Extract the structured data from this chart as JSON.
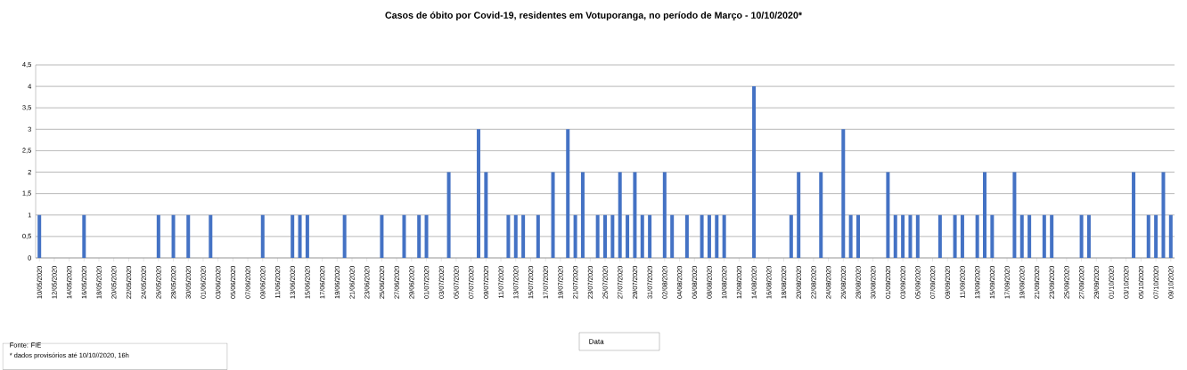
{
  "chart_data": {
    "type": "bar",
    "title": "Casos de óbito por Covid-19, residentes em Votuporanga, no período de Março - 10/10/2020*",
    "categories": [
      "10/05/2020",
      null,
      "12/05/2020",
      null,
      "14/05/2020",
      null,
      "16/05/2020",
      null,
      "18/05/2020",
      null,
      "20/05/2020",
      null,
      "22/05/2020",
      null,
      "24/05/2020",
      null,
      "26/05/2020",
      null,
      "28/05/2020",
      null,
      "30/05/2020",
      null,
      "01/06/2020",
      null,
      "03/06/2020",
      null,
      "05/06/2020",
      null,
      "07/06/2020",
      null,
      "09/06/2020",
      null,
      "11/06/2020",
      null,
      "13/06/2020",
      null,
      "15/06/2020",
      null,
      "17/06/2020",
      null,
      "19/06/2020",
      null,
      "21/06/2020",
      null,
      "23/06/2020",
      null,
      "25/06/2020",
      null,
      "27/06/2020",
      null,
      "29/06/2020",
      null,
      "01/07/2020",
      null,
      "03/07/2020",
      null,
      "05/07/2020",
      null,
      "07/07/2020",
      null,
      "09/07/2020",
      null,
      "11/07/2020",
      null,
      "13/07/2020",
      null,
      "15/07/2020",
      null,
      "17/07/2020",
      null,
      "19/07/2020",
      null,
      "21/07/2020",
      null,
      "23/07/2020",
      null,
      "25/07/2020",
      null,
      "27/07/2020",
      null,
      "29/07/2020",
      null,
      "31/07/2020",
      null,
      "02/08/2020",
      null,
      "04/08/2020",
      null,
      "06/08/2020",
      null,
      "08/08/2020",
      null,
      "10/08/2020",
      null,
      "12/08/2020",
      null,
      "14/08/2020",
      null,
      "16/08/2020",
      null,
      "18/08/2020",
      null,
      "20/08/2020",
      null,
      "22/08/2020",
      null,
      "24/08/2020",
      null,
      "26/08/2020",
      null,
      "28/08/2020",
      null,
      "30/08/2020",
      null,
      "01/09/2020",
      null,
      "03/09/2020",
      null,
      "05/09/2020",
      null,
      "07/09/2020",
      null,
      "09/09/2020",
      null,
      "11/09/2020",
      null,
      "13/09/2020",
      null,
      "15/09/2020",
      null,
      "17/09/2020",
      null,
      "19/09/2020",
      null,
      "21/09/2020",
      null,
      "23/09/2020",
      null,
      "25/09/2020",
      null,
      "27/09/2020",
      null,
      "29/09/2020",
      null,
      "01/10/2020",
      null,
      "03/10/2020",
      null,
      "05/10/2020",
      null,
      "07/10/2020",
      null,
      "09/10/2020"
    ],
    "values": [
      1,
      0,
      0,
      0,
      0,
      0,
      1,
      0,
      0,
      0,
      0,
      0,
      0,
      0,
      0,
      0,
      1,
      0,
      1,
      0,
      1,
      0,
      0,
      1,
      0,
      0,
      0,
      0,
      0,
      0,
      1,
      0,
      0,
      0,
      1,
      1,
      1,
      0,
      0,
      0,
      0,
      1,
      0,
      0,
      0,
      0,
      1,
      0,
      0,
      1,
      0,
      1,
      1,
      0,
      0,
      2,
      0,
      0,
      0,
      3,
      2,
      0,
      0,
      1,
      1,
      1,
      0,
      1,
      0,
      2,
      0,
      3,
      1,
      2,
      0,
      1,
      1,
      1,
      2,
      1,
      2,
      1,
      1,
      0,
      2,
      1,
      0,
      1,
      0,
      1,
      1,
      1,
      1,
      0,
      0,
      0,
      4,
      0,
      0,
      0,
      0,
      1,
      2,
      0,
      0,
      2,
      0,
      0,
      3,
      1,
      1,
      0,
      0,
      0,
      2,
      1,
      1,
      1,
      1,
      0,
      0,
      1,
      0,
      1,
      1,
      0,
      1,
      2,
      1,
      0,
      0,
      2,
      1,
      1,
      0,
      1,
      1,
      0,
      0,
      0,
      1,
      1,
      0,
      0,
      0,
      0,
      0,
      2,
      0,
      1,
      1,
      2,
      1
    ],
    "color": "#4472c4",
    "ylim": [
      0,
      4.5
    ],
    "yticks": [
      0,
      {
        "value": 0.5,
        "label": "0,5"
      },
      1,
      {
        "value": 1.5,
        "label": "1,5"
      },
      2,
      {
        "value": 2.5,
        "label": "2,5"
      },
      3,
      {
        "value": 3.5,
        "label": "3,5"
      },
      4,
      {
        "value": 4.5,
        "label": "4,5"
      }
    ],
    "grid": "y",
    "annotations": [
      "Data",
      "Fonte: FIE",
      "* dados provisórios até  10/10//2020, 16h"
    ]
  }
}
